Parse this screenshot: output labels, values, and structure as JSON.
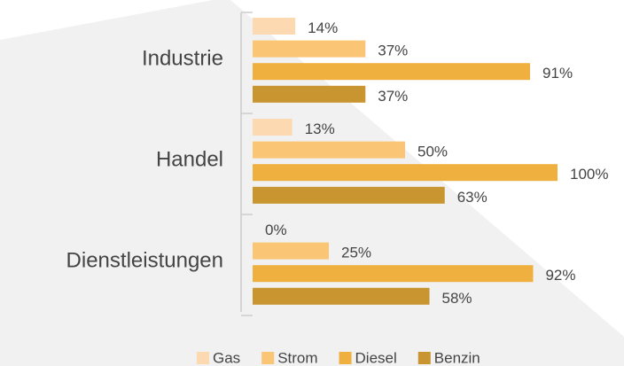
{
  "chart_data": {
    "type": "bar",
    "orientation": "horizontal",
    "categories": [
      "Industrie",
      "Handel",
      "Dienstleistungen"
    ],
    "series": [
      {
        "name": "Gas",
        "color": "#fcd9b0",
        "values": [
          14,
          13,
          0
        ],
        "value_labels": [
          "14%",
          "13%",
          "0%"
        ]
      },
      {
        "name": "Strom",
        "color": "#fac575",
        "values": [
          37,
          50,
          25
        ],
        "value_labels": [
          "37%",
          "50%",
          "25%"
        ]
      },
      {
        "name": "Diesel",
        "color": "#f0b040",
        "values": [
          91,
          100,
          92
        ],
        "value_labels": [
          "91%",
          "100%",
          "92%"
        ]
      },
      {
        "name": "Benzin",
        "color": "#c99530",
        "values": [
          37,
          63,
          58
        ],
        "value_labels": [
          "37%",
          "63%",
          "58%"
        ]
      }
    ],
    "legend": "bottom"
  }
}
